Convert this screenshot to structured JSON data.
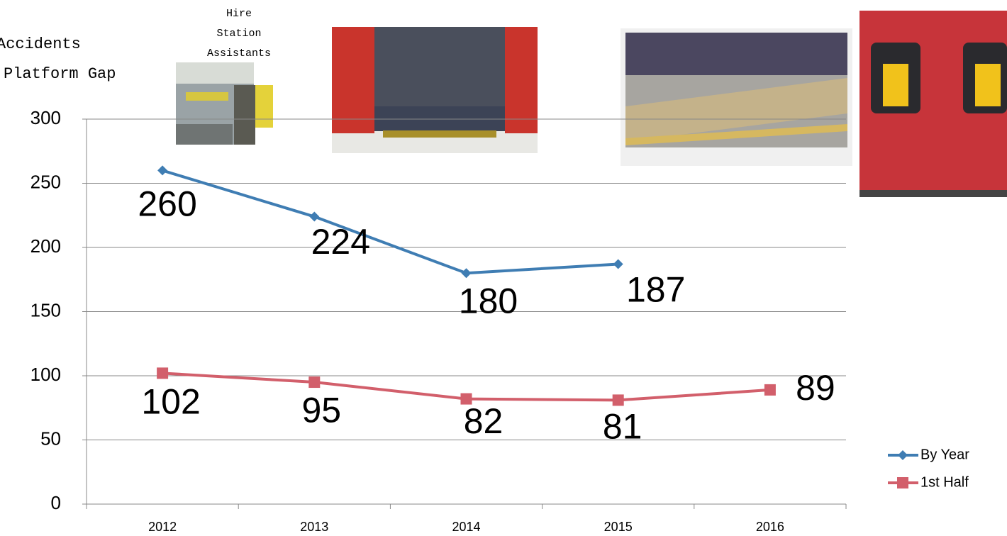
{
  "chart_data": {
    "type": "line",
    "title": [
      "Accidents",
      "Platform Gap"
    ],
    "annotation": [
      "Hire",
      "Station",
      "Assistants"
    ],
    "categories": [
      "2012",
      "2013",
      "2014",
      "2015",
      "2016"
    ],
    "series": [
      {
        "name": "By Year",
        "color": "#3f7db3",
        "marker": "diamond",
        "values": [
          260,
          224,
          180,
          187,
          null
        ]
      },
      {
        "name": "1st Half",
        "color": "#d25f6b",
        "marker": "square",
        "values": [
          102,
          95,
          82,
          81,
          89
        ]
      }
    ],
    "ylim": [
      0,
      300
    ],
    "yticks": [
      0,
      50,
      100,
      150,
      200,
      250,
      300
    ],
    "grid": true,
    "legend": "right"
  }
}
